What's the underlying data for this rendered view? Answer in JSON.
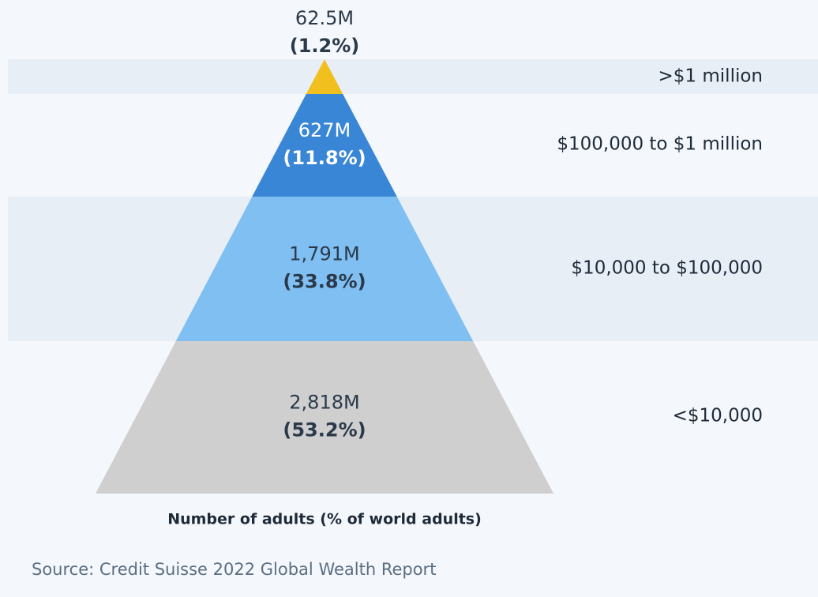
{
  "chart_data": {
    "type": "pyramid",
    "categories": [
      ">$1 million",
      "$100,000 to $1 million",
      "$10,000 to $100,000",
      "<$10,000"
    ],
    "values": [
      62.5,
      627,
      1791,
      2818
    ],
    "value_labels": [
      "62.5M",
      "627M",
      "1,791M",
      "2,818M"
    ],
    "percentages": [
      1.2,
      11.8,
      33.8,
      53.2
    ],
    "percentage_labels": [
      "(1.2%)",
      "(11.8%)",
      "(33.8%)",
      "(53.2%)"
    ],
    "colors": [
      "#f2c01e",
      "#3a86d6",
      "#7fbff2",
      "#cfcfcf"
    ],
    "label_colors": [
      "#2b3a4a",
      "#ffffff",
      "#2b3a4a",
      "#2b3a4a"
    ],
    "xlabel": "Number of adults (% of world adults)",
    "source": "Source: Credit Suisse 2022 Global Wealth Report"
  }
}
